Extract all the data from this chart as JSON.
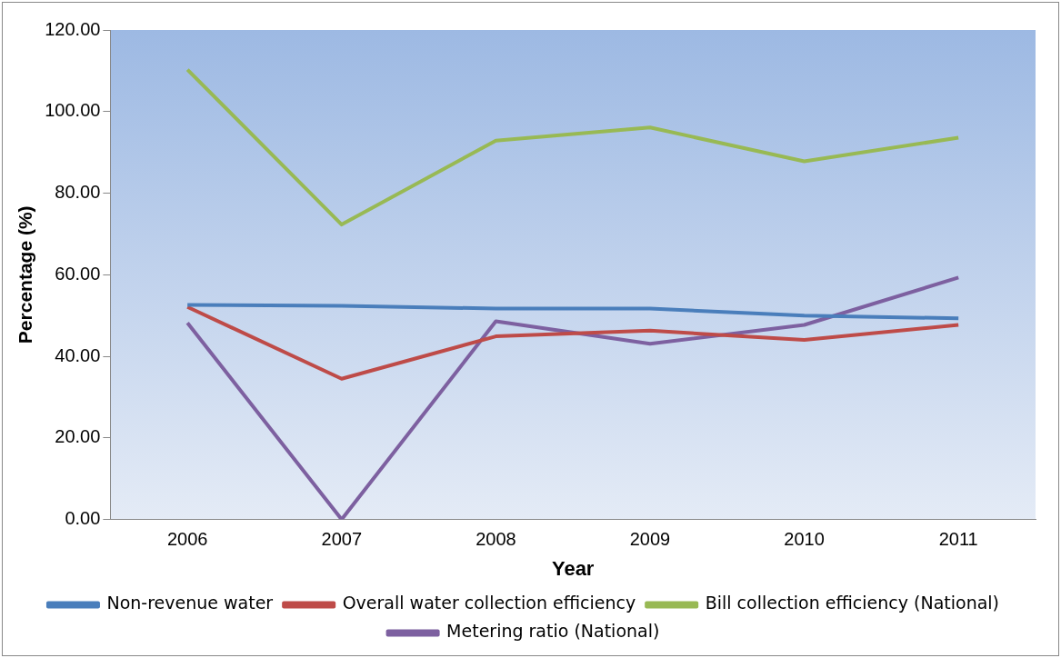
{
  "chart_data": {
    "type": "line",
    "xlabel": "Year",
    "ylabel": "Percentage (%)",
    "categories": [
      "2006",
      "2007",
      "2008",
      "2009",
      "2010",
      "2011"
    ],
    "series": [
      {
        "name": "Non-revenue water",
        "color": "#4a7ebb",
        "values": [
          52.6,
          52.4,
          51.7,
          51.7,
          50.0,
          49.3
        ]
      },
      {
        "name": "Overall water collection efficiency",
        "color": "#be4b48",
        "values": [
          52.1,
          34.5,
          44.9,
          46.3,
          44.0,
          47.7
        ]
      },
      {
        "name": "Bill collection efficiency (National)",
        "color": "#98b954",
        "values": [
          110.3,
          72.3,
          92.9,
          96.1,
          87.8,
          93.6
        ]
      },
      {
        "name": "Metering ratio (National)",
        "color": "#7d60a0",
        "values": [
          48.2,
          0,
          48.6,
          43.1,
          47.7,
          59.3
        ]
      }
    ],
    "ylim": [
      0,
      120
    ],
    "yticks": [
      {
        "value": 0,
        "label": "0.00"
      },
      {
        "value": 20,
        "label": "20.00"
      },
      {
        "value": 40,
        "label": "40.00"
      },
      {
        "value": 60,
        "label": "60.00"
      },
      {
        "value": 80,
        "label": "80.00"
      },
      {
        "value": 100,
        "label": "100.00"
      },
      {
        "value": 120,
        "label": "120.00"
      }
    ],
    "grid": false,
    "legend": "bottom",
    "marker": "none",
    "line_style": "solid"
  }
}
